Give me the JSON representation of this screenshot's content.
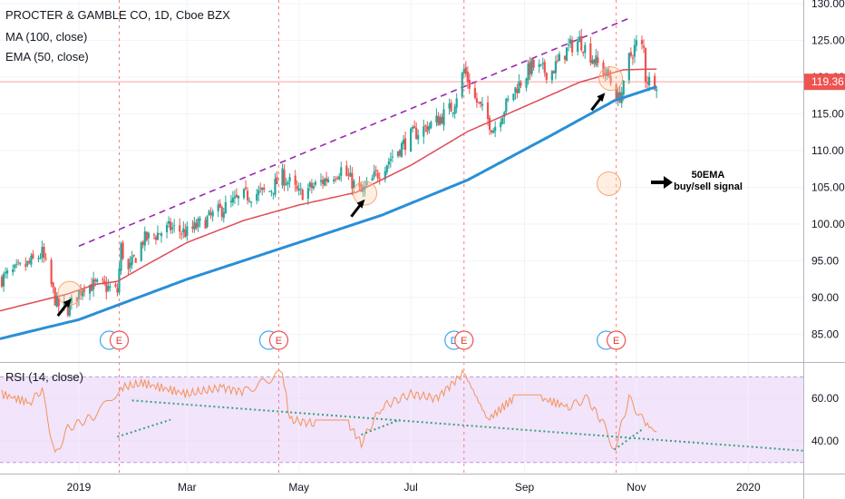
{
  "header": {
    "title": "PROCTER & GAMBLE CO, 1D, Cboe BZX",
    "ma_label": "MA (100, close)",
    "ema_label": "EMA (50, close)",
    "rsi_label": "RSI (14, close)"
  },
  "annotation": {
    "line1": "50EMA",
    "line2": "buy/sell signal"
  },
  "colors": {
    "up": "#26a69a",
    "down": "#ef5350",
    "ma": "#2a8fd6",
    "ema": "#e04b56",
    "rsi": "#f5925a",
    "rsi_band": "#f1e4fb",
    "price_line": "#f8a0a0",
    "price_label_bg": "#ef5350",
    "channel": "#9c27b0",
    "trend_dots": "#3aa17a",
    "event_line": "#ff7a7a"
  },
  "chart_data": {
    "type": "candlestick",
    "symbol": "PROCTER & GAMBLE CO",
    "interval": "1D",
    "exchange": "Cboe BZX",
    "last_price": "119.36",
    "x_axis_labels": [
      "2019",
      "Mar",
      "May",
      "Jul",
      "Sep",
      "Nov",
      "2020"
    ],
    "x_axis_dates": [
      "2019-01-01",
      "2019-03-01",
      "2019-05-01",
      "2019-07-01",
      "2019-09-01",
      "2019-11-01",
      "2020-01-01"
    ],
    "x_range": [
      "2018-11-19",
      "2020-01-31"
    ],
    "price_axis": {
      "ticks": [
        85,
        90,
        95,
        100,
        105,
        110,
        115,
        120,
        125,
        130
      ],
      "tick_labels": [
        "85.00",
        "90.00",
        "95.00",
        "100.00",
        "105.00",
        "110.00",
        "115.00",
        "120.00",
        "125.00",
        "130.00"
      ],
      "range": [
        82.5,
        130.0
      ]
    },
    "price_anchors": [
      [
        "2018-11-20",
        92.6
      ],
      [
        "2018-12-05",
        94.6
      ],
      [
        "2018-12-12",
        96.0
      ],
      [
        "2018-12-20",
        89.0
      ],
      [
        "2018-12-26",
        88.5
      ],
      [
        "2019-01-04",
        91.8
      ],
      [
        "2019-01-15",
        91.5
      ],
      [
        "2019-01-22",
        90.8
      ],
      [
        "2019-01-24",
        96.8
      ],
      [
        "2019-01-28",
        93.5
      ],
      [
        "2019-02-05",
        97.8
      ],
      [
        "2019-02-20",
        99.5
      ],
      [
        "2019-03-01",
        98.8
      ],
      [
        "2019-03-20",
        102.0
      ],
      [
        "2019-04-01",
        103.8
      ],
      [
        "2019-04-15",
        104.5
      ],
      [
        "2019-04-22",
        106.5
      ],
      [
        "2019-04-26",
        105.6
      ],
      [
        "2019-05-01",
        104.0
      ],
      [
        "2019-05-15",
        106.0
      ],
      [
        "2019-05-24",
        107.5
      ],
      [
        "2019-06-04",
        104.2
      ],
      [
        "2019-06-10",
        106.0
      ],
      [
        "2019-06-20",
        109.0
      ],
      [
        "2019-07-01",
        112.0
      ],
      [
        "2019-07-15",
        114.0
      ],
      [
        "2019-07-24",
        116.0
      ],
      [
        "2019-07-30",
        121.0
      ],
      [
        "2019-08-05",
        117.0
      ],
      [
        "2019-08-15",
        113.0
      ],
      [
        "2019-08-26",
        118.0
      ],
      [
        "2019-09-05",
        121.5
      ],
      [
        "2019-09-15",
        120.5
      ],
      [
        "2019-09-25",
        124.0
      ],
      [
        "2019-10-01",
        125.0
      ],
      [
        "2019-10-10",
        122.0
      ],
      [
        "2019-10-17",
        120.0
      ],
      [
        "2019-10-22",
        117.0
      ],
      [
        "2019-10-25",
        118.5
      ],
      [
        "2019-10-28",
        122.5
      ],
      [
        "2019-11-01",
        124.5
      ],
      [
        "2019-11-05",
        123.8
      ],
      [
        "2019-11-06",
        120.0
      ],
      [
        "2019-11-08",
        119.5
      ],
      [
        "2019-11-12",
        119.36
      ]
    ],
    "ma100_anchors": [
      [
        "2018-11-19",
        84.4
      ],
      [
        "2019-01-01",
        87.0
      ],
      [
        "2019-03-01",
        92.5
      ],
      [
        "2019-05-01",
        97.5
      ],
      [
        "2019-06-15",
        101.2
      ],
      [
        "2019-08-01",
        106.0
      ],
      [
        "2019-09-15",
        112.0
      ],
      [
        "2019-10-20",
        116.8
      ],
      [
        "2019-11-12",
        118.7
      ]
    ],
    "ema50_anchors": [
      [
        "2018-11-19",
        88.2
      ],
      [
        "2018-12-26",
        90.5
      ],
      [
        "2019-01-10",
        91.8
      ],
      [
        "2019-01-22",
        92.2
      ],
      [
        "2019-02-05",
        94.2
      ],
      [
        "2019-03-01",
        97.5
      ],
      [
        "2019-04-01",
        100.5
      ],
      [
        "2019-05-01",
        102.6
      ],
      [
        "2019-06-01",
        104.3
      ],
      [
        "2019-07-01",
        108.0
      ],
      [
        "2019-08-01",
        112.6
      ],
      [
        "2019-09-01",
        116.0
      ],
      [
        "2019-10-01",
        119.3
      ],
      [
        "2019-10-25",
        121.0
      ],
      [
        "2019-11-12",
        121.1
      ]
    ],
    "channel_line": [
      [
        "2019-01-01",
        97.0
      ],
      [
        "2019-10-28",
        128.0
      ]
    ],
    "events": [
      {
        "date": "2019-01-23",
        "markers": [
          "blue-circle",
          "E"
        ]
      },
      {
        "date": "2019-04-20",
        "markers": [
          "blue-circle",
          "E"
        ]
      },
      {
        "date": "2019-07-30",
        "markers": [
          "D",
          "E"
        ]
      },
      {
        "date": "2019-10-21",
        "markers": [
          "blue-circle",
          "E"
        ]
      }
    ],
    "signal_circles": [
      {
        "date": "2018-12-27",
        "price": 90.6
      },
      {
        "date": "2019-06-06",
        "price": 104.2
      },
      {
        "date": "2019-10-18",
        "price": 119.8
      },
      {
        "date": "2019-10-17",
        "price": 105.5
      }
    ],
    "arrows": [
      {
        "date": "2018-12-24",
        "price": 89.0
      },
      {
        "date": "2019-06-02",
        "price": 102.5
      },
      {
        "date": "2019-10-11",
        "price": 117.0
      }
    ],
    "rsi": {
      "label": "RSI (14, close)",
      "ticks": [
        40,
        60
      ],
      "tick_labels": [
        "40.00",
        "60.00"
      ],
      "band": [
        30,
        70
      ],
      "range": [
        26,
        78
      ],
      "anchors": [
        [
          "2018-11-20",
          62
        ],
        [
          "2018-12-05",
          58
        ],
        [
          "2018-12-12",
          64
        ],
        [
          "2018-12-19",
          33
        ],
        [
          "2018-12-26",
          46
        ],
        [
          "2019-01-10",
          52
        ],
        [
          "2019-01-24",
          65
        ],
        [
          "2019-02-05",
          67
        ],
        [
          "2019-03-01",
          62
        ],
        [
          "2019-03-20",
          65
        ],
        [
          "2019-04-01",
          63
        ],
        [
          "2019-04-22",
          72
        ],
        [
          "2019-04-26",
          50
        ],
        [
          "2019-05-10",
          48
        ],
        [
          "2019-05-28",
          48
        ],
        [
          "2019-06-04",
          39
        ],
        [
          "2019-06-15",
          56
        ],
        [
          "2019-07-01",
          62
        ],
        [
          "2019-07-15",
          60
        ],
        [
          "2019-07-30",
          72
        ],
        [
          "2019-08-12",
          50
        ],
        [
          "2019-08-26",
          60
        ],
        [
          "2019-09-10",
          60
        ],
        [
          "2019-09-25",
          56
        ],
        [
          "2019-10-05",
          60
        ],
        [
          "2019-10-14",
          48
        ],
        [
          "2019-10-20",
          36
        ],
        [
          "2019-10-28",
          60
        ],
        [
          "2019-11-05",
          49
        ],
        [
          "2019-11-12",
          44
        ]
      ],
      "trendline_upper": [
        [
          "2019-01-30",
          59
        ],
        [
          "2020-01-31",
          35.5
        ]
      ],
      "trendline_lower": [
        [
          "2019-01-22",
          42
        ],
        [
          "2019-02-20",
          50
        ]
      ],
      "trendline_lower2": [
        [
          "2019-06-04",
          43
        ],
        [
          "2019-06-25",
          50
        ]
      ],
      "trendline_lower3": [
        [
          "2019-10-20",
          36
        ],
        [
          "2019-11-05",
          46
        ]
      ]
    }
  }
}
